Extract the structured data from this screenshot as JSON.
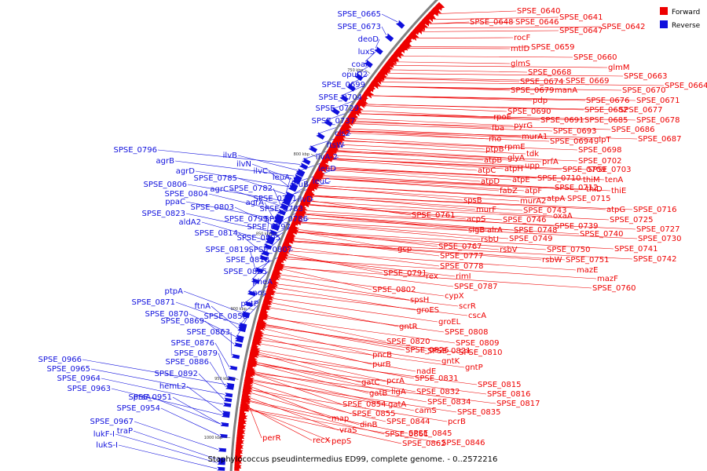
{
  "caption": "Staphylococcus pseudintermedius ED99, complete genome. - 0..2572216",
  "legend": {
    "forward_label": "Forward",
    "reverse_label": "Reverse",
    "forward_color": "#ee0000",
    "reverse_color": "#1010dd"
  },
  "colors": {
    "backbone": "#808080",
    "forward": "#ee0000",
    "reverse": "#1010dd"
  },
  "ticks": [
    "750 kbp",
    "800 kbp",
    "850 kbp",
    "900 kbp",
    "950 kbp",
    "1000 kbp"
  ],
  "reverse_genes": [
    "SPSE_0665",
    "SPSE_0673",
    "deoD",
    "luxS",
    "coaA",
    "opuD2",
    "SPSE_0699",
    "SPSE_0704",
    "SPSE_0729",
    "SPSE_0737",
    "cls2",
    "ftsW",
    "ilvA-2",
    "leuD",
    "leuC",
    "SPSE_0796",
    "agrB",
    "agrD",
    "ilvB",
    "ilvN",
    "ilvC",
    "leuA",
    "SPSE_0785",
    "SPSE_0782",
    "leuB",
    "SPSE_0806",
    "agrC",
    "SPSE_0781",
    "ilvD",
    "SPSE_0804",
    "agrA",
    "ppaC",
    "SPSE_0803",
    "SPSE_0783",
    "SPSE_0823",
    "SPSE_0799",
    "SPSE_0786",
    "aldA2",
    "SPSE_0797",
    "SPSE_0814",
    "SPSE_0805",
    "SPSE_0819",
    "SPSE_0807",
    "SPSE_0818",
    "SPSE_0825",
    "pheA",
    "nos",
    "ptpA",
    "putP",
    "SPSE_0871",
    "ftnA",
    "SPSE_0870",
    "SPSE_0858",
    "SPSE_0869",
    "SPSE_0863",
    "SPSE_0876",
    "SPSE_0879",
    "SPSE_0886",
    "SPSE_0892",
    "SPSE_0966",
    "SPSE_0965",
    "hemL2",
    "SPSE_0964",
    "SPSE_0963",
    "prsA",
    "SPSE_0951",
    "SPSE_0954",
    "SPSE_0967",
    "traP",
    "lukF-I",
    "lukS-I"
  ],
  "forward_genes": [
    "SPSE_0640",
    "SPSE_0641",
    "SPSE_0648",
    "SPSE_0646",
    "SPSE_0647",
    "SPSE_0642",
    "rocF",
    "SPSE_0659",
    "mtlD",
    "SPSE_0660",
    "glmS",
    "glmM",
    "SPSE_0663",
    "SPSE_0664",
    "SPSE_0668",
    "SPSE_0674",
    "SPSE_0669",
    "SPSE_0679",
    "manA",
    "SPSE_0670",
    "pdp",
    "SPSE_0676",
    "SPSE_0671",
    "SPSE_0690",
    "SPSE_0682",
    "SPSE_0677",
    "rpoE",
    "SPSE_0691",
    "SPSE_0685",
    "SPSE_0678",
    "fba",
    "pyrG",
    "SPSE_0686",
    "SPSE_0693",
    "rho",
    "murA1",
    "SPSE_0694",
    "glpT",
    "SPSE_0687",
    "ptpB",
    "rpmE",
    "tdk",
    "SPSE_0698",
    "atpB",
    "glyA",
    "prfA",
    "SPSE_0702",
    "atpC",
    "atpH",
    "upp",
    "SPSE_0709",
    "SPSE_0703",
    "tenA",
    "atpD",
    "atpE",
    "SPSE_0710",
    "thiM",
    "fabZ",
    "atpF",
    "SPSE_0712",
    "thiE",
    "murA2",
    "atpA",
    "SPSE_0715",
    "thiD",
    "SPSE_0716",
    "spsB",
    "murF",
    "SPSE_0743",
    "atpG",
    "oxaA",
    "SPSE_0725",
    "SPSE_0761",
    "acpS",
    "SPSE_0746",
    "SPSE_0739",
    "SPSE_0727",
    "sigB",
    "alrA",
    "SPSE_0748",
    "SPSE_0740",
    "SPSE_0730",
    "rsbU",
    "SPSE_0749",
    "SPSE_0741",
    "rsbV",
    "SPSE_0750",
    "SPSE_0742",
    "rsbW",
    "SPSE_0751",
    "mazE",
    "mazF",
    "SPSE_0760",
    "SPSE_0767",
    "gcp",
    "SPSE_0777",
    "SPSE_0778",
    "SPSE_0791",
    "rex",
    "rimI",
    "SPSE_0787",
    "cypX",
    "SPSE_0802",
    "spsH",
    "scrR",
    "groES",
    "cscA",
    "groEL",
    "gntR",
    "SPSE_0808",
    "SPSE_0820",
    "SPSE_0809",
    "SPSE_0821",
    "pncB",
    "SPSE_0810",
    "SPSE_0826",
    "purB",
    "gntK",
    "nadE",
    "gntP",
    "gatC",
    "pcrA",
    "SPSE_0831",
    "SPSE_0815",
    "gatB",
    "ligA",
    "SPSE_0832",
    "SPSE_0816",
    "SPSE_0854",
    "gatA",
    "SPSE_0834",
    "SPSE_0817",
    "camS",
    "SPSE_0835",
    "map",
    "SPSE_0855",
    "SPSE_0844",
    "pcrB",
    "dinB",
    "vraS",
    "SPSE_0845",
    "SPSE_0861",
    "SPSE_0846",
    "pepS",
    "SPSE_0862",
    "recX",
    "perR"
  ]
}
